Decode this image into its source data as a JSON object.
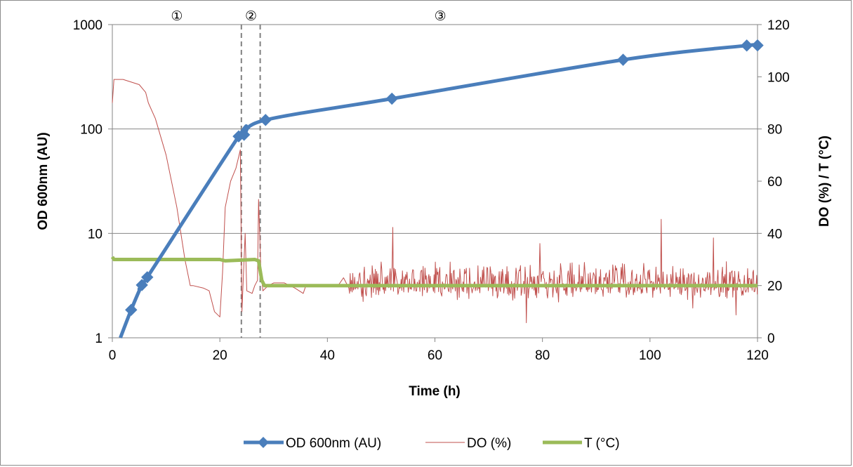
{
  "chart_data": {
    "type": "line",
    "xlabel": "Time (h)",
    "ylabel_left": "OD 600nm (AU)",
    "ylabel_right": "DO (%) / T (°C)",
    "xlim": [
      0,
      120
    ],
    "ylim_left": [
      1,
      1000
    ],
    "ylim_right": [
      0,
      120
    ],
    "yscale_left": "log",
    "grid": true,
    "x_ticks": [
      "0",
      "20",
      "40",
      "60",
      "80",
      "100",
      "120"
    ],
    "y_left_ticks": [
      "1",
      "10",
      "100",
      "1000"
    ],
    "y_right_ticks": [
      "0",
      "20",
      "40",
      "60",
      "80",
      "100",
      "120"
    ],
    "legend_position": "bottom",
    "phase_markers": [
      {
        "label": "①",
        "x": 12
      },
      {
        "label": "②",
        "x": 25.8
      },
      {
        "label": "③",
        "x": 61
      }
    ],
    "phase_boundaries": [
      24,
      27.5
    ],
    "series": [
      {
        "name": "OD 600nm (AU)",
        "axis": "left",
        "color": "#4a7ebb",
        "marker": "diamond",
        "x": [
          1.5,
          3.5,
          5.5,
          6.5,
          23.5,
          24.5,
          28.5,
          52,
          95,
          118,
          120
        ],
        "y": [
          1.0,
          1.85,
          3.2,
          3.8,
          85,
          88,
          122,
          195,
          460,
          630,
          632
        ]
      },
      {
        "name": "DO (%)",
        "axis": "right",
        "color": "#c0504d",
        "x": [
          0,
          0.3,
          2,
          5,
          6.2,
          6.7,
          8,
          10,
          12,
          13.5,
          14.5,
          15,
          17,
          18,
          19,
          20,
          20.5,
          21,
          22,
          23,
          23.8,
          24.1,
          24.4,
          24.7,
          25,
          26,
          26.5,
          27,
          27.2,
          27.6,
          28,
          29,
          30,
          32,
          34,
          35.5,
          36,
          38,
          40,
          42,
          43,
          44,
          46,
          60,
          80,
          100,
          120
        ],
        "y": [
          90,
          99,
          99,
          97,
          94,
          90,
          84,
          70,
          50,
          30,
          20,
          20,
          19,
          18,
          10,
          8,
          25,
          50,
          60,
          65,
          72,
          10,
          25,
          40,
          18,
          17,
          20,
          22,
          53,
          27,
          18,
          20,
          21,
          21,
          19,
          17,
          20,
          20,
          20,
          20,
          23,
          19,
          20,
          20,
          20,
          20,
          20
        ]
      },
      {
        "name": "T (°C)",
        "axis": "right",
        "color": "#9bbb59",
        "x": [
          0,
          0.3,
          1,
          20,
          21,
          26.5,
          27.2,
          27.8,
          28.3,
          120
        ],
        "y": [
          31,
          30,
          30,
          30,
          29.5,
          30,
          29.5,
          22,
          20,
          20
        ]
      }
    ]
  }
}
